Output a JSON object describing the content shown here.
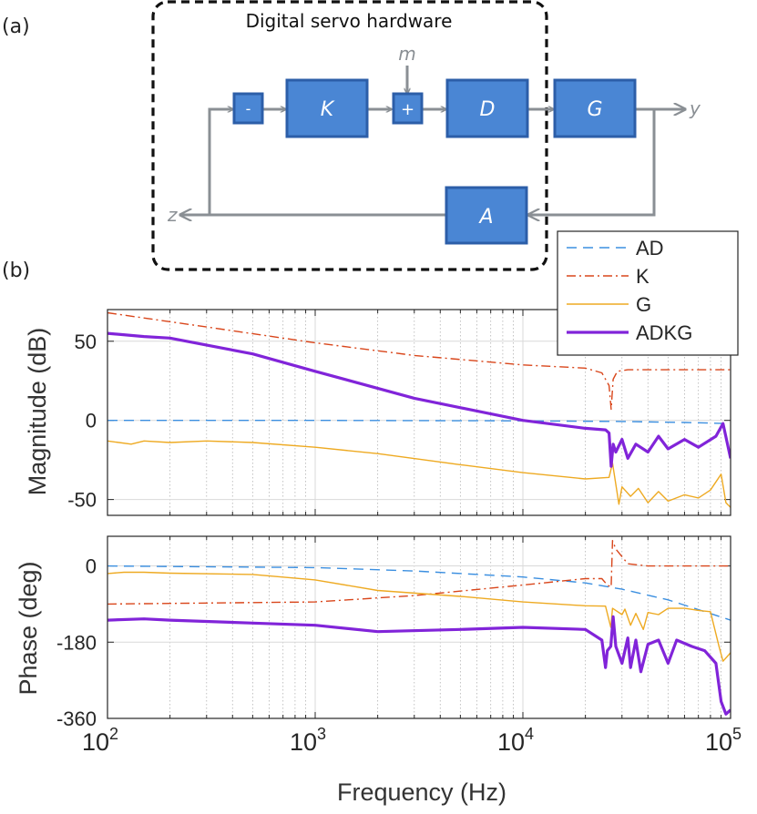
{
  "panel_labels": {
    "a": "(a)",
    "b": "(b)"
  },
  "diagram": {
    "enclosure_title": "Digital servo hardware",
    "blocks": {
      "sub": "-",
      "K": "K",
      "add": "+",
      "D": "D",
      "G": "G",
      "A": "A"
    },
    "signals": {
      "m": "m",
      "y": "y",
      "z": "z"
    },
    "colors": {
      "block_fill": "#4a86d4",
      "block_border": "#2c5ea8",
      "arrow": "#8a8f94",
      "enclosure": "#111111"
    }
  },
  "chart_data": [
    {
      "type": "line",
      "title": "",
      "xlabel": "",
      "ylabel": "Magnitude (dB)",
      "xscale": "log",
      "xlim": [
        100,
        100000
      ],
      "ylim": [
        -60,
        70
      ],
      "yticks": [
        50,
        0,
        -50
      ],
      "ytick_labels": [
        "50",
        "0",
        "-50"
      ],
      "grid": true,
      "legend_position": "top-right",
      "series": [
        {
          "name": "AD",
          "color": "#3b8fe0",
          "style": "dashed",
          "width": 1.4,
          "x": [
            100,
            1000,
            10000,
            30000,
            60000,
            100000
          ],
          "y": [
            0,
            0,
            -0.3,
            -0.7,
            -1.3,
            -2
          ]
        },
        {
          "name": "K",
          "color": "#d9461b",
          "style": "dashdot",
          "width": 1.4,
          "x": [
            100,
            300,
            1000,
            3000,
            10000,
            20000,
            24000,
            26000,
            26600,
            27200,
            28500,
            32000,
            50000,
            100000
          ],
          "y": [
            68,
            59,
            49,
            41,
            35,
            33,
            30,
            22,
            7,
            26,
            31,
            32,
            32,
            32
          ]
        },
        {
          "name": "G",
          "color": "#eeaa22",
          "style": "solid",
          "width": 1.4,
          "x": [
            100,
            130,
            150,
            200,
            300,
            500,
            1000,
            2000,
            5000,
            10000,
            20000,
            26000,
            27000,
            29000,
            30000,
            33000,
            36000,
            40000,
            45000,
            50000,
            60000,
            70000,
            80000,
            90000,
            95000,
            100000
          ],
          "y": [
            -13,
            -15,
            -13,
            -14,
            -13,
            -14,
            -17,
            -21,
            -28,
            -33,
            -37,
            -36,
            -27,
            -53,
            -42,
            -48,
            -43,
            -52,
            -45,
            -51,
            -47,
            -49,
            -44,
            -34,
            -52,
            -55
          ]
        },
        {
          "name": "ADKG",
          "color": "#8124d9",
          "style": "solid",
          "width": 3.2,
          "x": [
            100,
            150,
            200,
            500,
            1000,
            3000,
            10000,
            20000,
            25000,
            26000,
            26600,
            27200,
            28000,
            30000,
            32000,
            35000,
            40000,
            45000,
            50000,
            60000,
            70000,
            85000,
            92000,
            100000
          ],
          "y": [
            55,
            53,
            52,
            42,
            31,
            14,
            0,
            -5,
            -6,
            -8,
            -29,
            -15,
            -20,
            -12,
            -24,
            -15,
            -20,
            -10,
            -18,
            -12,
            -17,
            -10,
            -2,
            -24
          ]
        }
      ]
    },
    {
      "type": "line",
      "title": "",
      "xlabel": "Frequency (Hz)",
      "ylabel": "Phase (deg)",
      "xscale": "log",
      "xlim": [
        100,
        100000
      ],
      "ylim": [
        -360,
        70
      ],
      "yticks": [
        0,
        -180,
        -360
      ],
      "ytick_labels": [
        "0",
        "-180",
        "-360"
      ],
      "xticks": [
        100,
        1000,
        10000,
        100000
      ],
      "xtick_labels": [
        [
          "10",
          "2"
        ],
        [
          "10",
          "3"
        ],
        [
          "10",
          "4"
        ],
        [
          "10",
          "5"
        ]
      ],
      "grid": true,
      "series": [
        {
          "name": "AD",
          "color": "#3b8fe0",
          "style": "dashed",
          "width": 1.4,
          "x": [
            100,
            1000,
            3000,
            10000,
            20000,
            30000,
            50000,
            70000,
            100000
          ],
          "y": [
            0,
            -4,
            -12,
            -26,
            -40,
            -55,
            -80,
            -103,
            -128
          ]
        },
        {
          "name": "K",
          "color": "#d9461b",
          "style": "dashdot",
          "width": 1.4,
          "x": [
            100,
            1000,
            3000,
            10000,
            20000,
            24000,
            25500,
            26600,
            27000,
            28000,
            32000,
            40000,
            60000,
            100000
          ],
          "y": [
            -90,
            -85,
            -70,
            -45,
            -30,
            -30,
            -45,
            -50,
            60,
            40,
            5,
            0,
            0,
            0
          ]
        },
        {
          "name": "G",
          "color": "#eeaa22",
          "style": "solid",
          "width": 1.4,
          "x": [
            100,
            120,
            150,
            200,
            500,
            1000,
            2000,
            5000,
            10000,
            20000,
            25000,
            26500,
            27000,
            30000,
            31000,
            33000,
            35000,
            38000,
            40000,
            45000,
            50000,
            60000,
            70000,
            80000,
            88000,
            92000,
            100000
          ],
          "y": [
            -18,
            -15,
            -15,
            -17,
            -20,
            -33,
            -58,
            -72,
            -85,
            -94,
            -95,
            -145,
            -100,
            -115,
            -102,
            -140,
            -112,
            -150,
            -110,
            -115,
            -100,
            -100,
            -105,
            -108,
            -190,
            -225,
            -205
          ]
        },
        {
          "name": "ADKG",
          "color": "#8124d9",
          "style": "solid",
          "width": 3.2,
          "x": [
            100,
            150,
            200,
            500,
            1000,
            2000,
            5000,
            10000,
            20000,
            24000,
            25000,
            25500,
            26500,
            27200,
            28000,
            30000,
            32000,
            33000,
            35000,
            37000,
            40000,
            45000,
            50000,
            55000,
            65000,
            75000,
            85000,
            90000,
            95000,
            100000
          ],
          "y": [
            -128,
            -125,
            -128,
            -135,
            -140,
            -155,
            -150,
            -145,
            -150,
            -175,
            -240,
            -200,
            -190,
            -120,
            -190,
            -230,
            -170,
            -240,
            -175,
            -250,
            -185,
            -175,
            -230,
            -175,
            -190,
            -200,
            -230,
            -320,
            -350,
            -340
          ]
        }
      ]
    }
  ]
}
